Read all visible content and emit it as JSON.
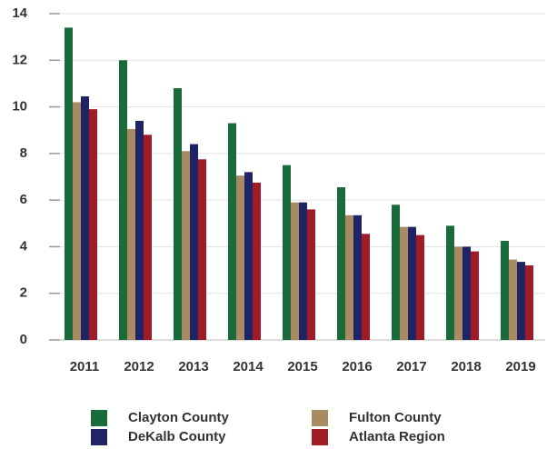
{
  "chart_data": {
    "type": "bar",
    "categories": [
      "2011",
      "2012",
      "2013",
      "2014",
      "2015",
      "2016",
      "2017",
      "2018",
      "2019"
    ],
    "series": [
      {
        "name": "Clayton County",
        "color": "#1a6b3a",
        "values": [
          13.4,
          12.0,
          10.8,
          9.3,
          7.5,
          6.55,
          5.8,
          4.9,
          4.25
        ]
      },
      {
        "name": "Fulton County",
        "color": "#a88a63",
        "values": [
          10.2,
          9.05,
          8.1,
          7.05,
          5.9,
          5.35,
          4.85,
          4.0,
          3.45
        ]
      },
      {
        "name": "DeKalb County",
        "color": "#1f2466",
        "values": [
          10.45,
          9.4,
          8.4,
          7.2,
          5.9,
          5.35,
          4.85,
          4.0,
          3.35
        ]
      },
      {
        "name": "Atlanta Region",
        "color": "#a01b25",
        "values": [
          9.9,
          8.8,
          7.75,
          6.75,
          5.6,
          4.55,
          4.5,
          3.8,
          3.2
        ]
      }
    ],
    "ylim": [
      0,
      14
    ],
    "yticks": [
      0,
      2,
      4,
      6,
      8,
      10,
      12,
      14
    ],
    "grid": true
  }
}
